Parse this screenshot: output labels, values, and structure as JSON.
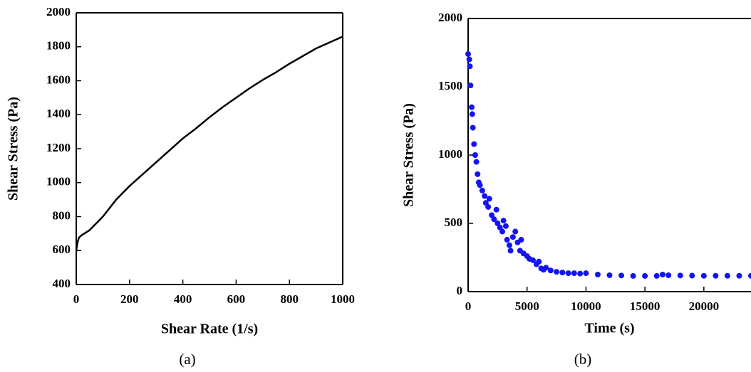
{
  "chart_data": [
    {
      "type": "line",
      "caption": "(a)",
      "x_label": "Shear Rate (1/s)",
      "y_label": "Shear Stress (Pa)",
      "color": "#000000",
      "xlim": [
        0,
        1000
      ],
      "ylim": [
        400,
        2000
      ],
      "xticks": [
        0,
        200,
        400,
        600,
        800,
        1000
      ],
      "yticks": [
        400,
        600,
        800,
        1000,
        1200,
        1400,
        1600,
        1800,
        2000
      ],
      "x": [
        0,
        5,
        10,
        20,
        50,
        100,
        150,
        200,
        250,
        300,
        350,
        400,
        450,
        500,
        550,
        600,
        650,
        700,
        750,
        800,
        850,
        900,
        950,
        1000
      ],
      "values": [
        600,
        650,
        675,
        690,
        720,
        800,
        900,
        980,
        1050,
        1120,
        1190,
        1260,
        1320,
        1385,
        1445,
        1500,
        1555,
        1605,
        1650,
        1700,
        1745,
        1790,
        1825,
        1860
      ]
    },
    {
      "type": "scatter",
      "caption": "(b)",
      "x_label": "Time (s)",
      "y_label": "Shear Stress (Pa)",
      "color": "#1414f0",
      "xlim": [
        0,
        24000
      ],
      "ylim": [
        0,
        2000
      ],
      "xticks": [
        0,
        5000,
        10000,
        15000,
        20000
      ],
      "yticks": [
        0,
        500,
        1000,
        1500,
        2000
      ],
      "x": [
        0,
        100,
        150,
        200,
        300,
        350,
        400,
        500,
        600,
        700,
        800,
        900,
        1000,
        1200,
        1400,
        1500,
        1700,
        1800,
        2000,
        2200,
        2400,
        2500,
        2700,
        2900,
        3000,
        3200,
        3300,
        3500,
        3600,
        3800,
        4000,
        4200,
        4400,
        4500,
        4700,
        5000,
        5200,
        5500,
        5800,
        6000,
        6200,
        6400,
        6600,
        7000,
        7500,
        8000,
        8500,
        9000,
        9500,
        10000,
        11000,
        12000,
        13000,
        14000,
        15000,
        16000,
        16500,
        17000,
        18000,
        19000,
        20000,
        21000,
        22000,
        23000,
        24000
      ],
      "values": [
        1740,
        1700,
        1650,
        1510,
        1350,
        1300,
        1200,
        1080,
        1000,
        950,
        860,
        800,
        780,
        740,
        700,
        650,
        620,
        680,
        560,
        530,
        600,
        500,
        470,
        440,
        520,
        480,
        380,
        340,
        300,
        400,
        440,
        360,
        300,
        380,
        280,
        260,
        240,
        230,
        200,
        220,
        170,
        160,
        175,
        155,
        145,
        140,
        135,
        135,
        132,
        135,
        125,
        120,
        118,
        115,
        115,
        115,
        125,
        120,
        118,
        117,
        116,
        116,
        116,
        116,
        116
      ]
    }
  ]
}
